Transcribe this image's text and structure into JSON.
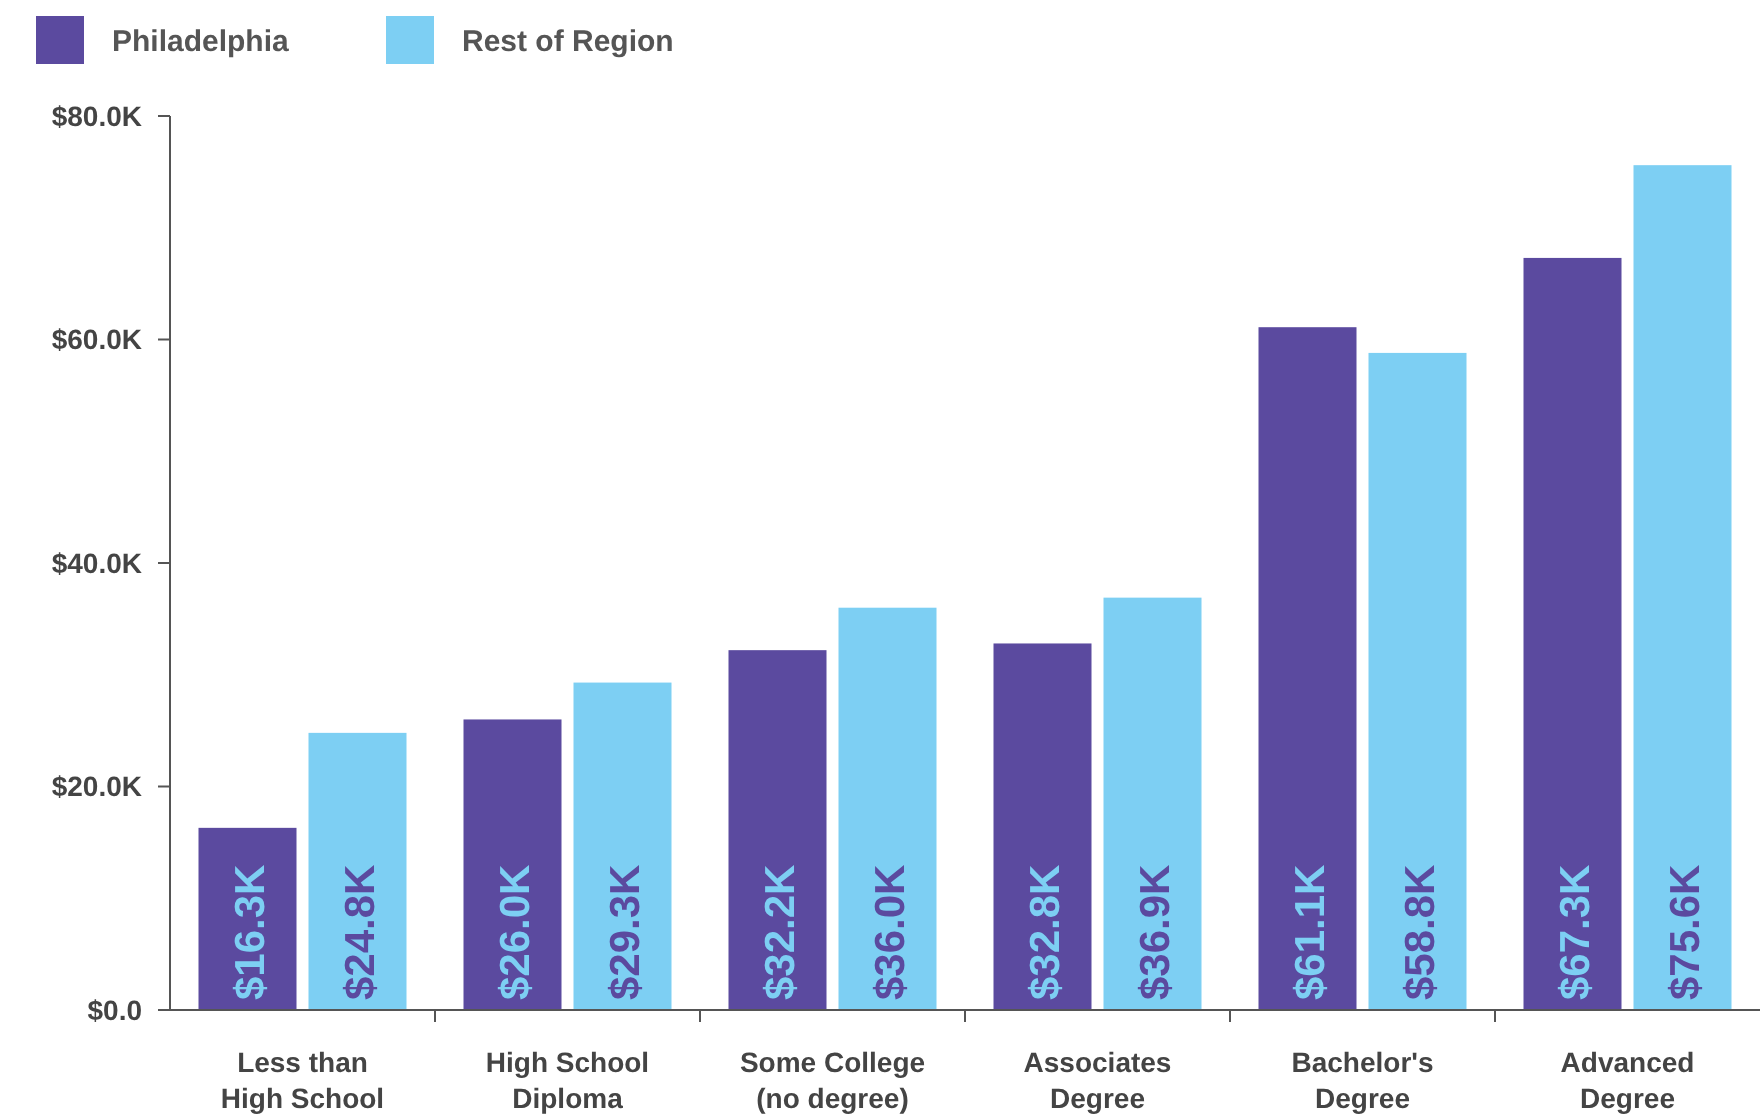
{
  "chart_data": {
    "type": "bar",
    "categories": [
      "Less than\nHigh School",
      "High School\nDiploma",
      "Some College\n(no degree)",
      "Associates\nDegree",
      "Bachelor's\nDegree",
      "Advanced\nDegree"
    ],
    "series": [
      {
        "name": "Philadelphia",
        "color": "#5b4a9f",
        "values": [
          16.3,
          26.0,
          32.2,
          32.8,
          61.1,
          67.3
        ],
        "value_labels": [
          "$16.3K",
          "$26.0K",
          "$32.2K",
          "$32.8K",
          "$61.1K",
          "$67.3K"
        ]
      },
      {
        "name": "Rest of Region",
        "color": "#7dcff3",
        "values": [
          24.8,
          29.3,
          36.0,
          36.9,
          58.8,
          75.6
        ],
        "value_labels": [
          "$24.8K",
          "$29.3K",
          "$36.0K",
          "$36.9K",
          "$58.8K",
          "$75.6K"
        ]
      }
    ],
    "ylim": [
      0,
      80
    ],
    "yticks": [
      {
        "value": 0,
        "label": "$0.0"
      },
      {
        "value": 20,
        "label": "$20.0K"
      },
      {
        "value": 40,
        "label": "$40.0K"
      },
      {
        "value": 60,
        "label": "$60.0K"
      },
      {
        "value": 80,
        "label": "$80.0K"
      }
    ],
    "grid": false,
    "legend": "top left"
  }
}
